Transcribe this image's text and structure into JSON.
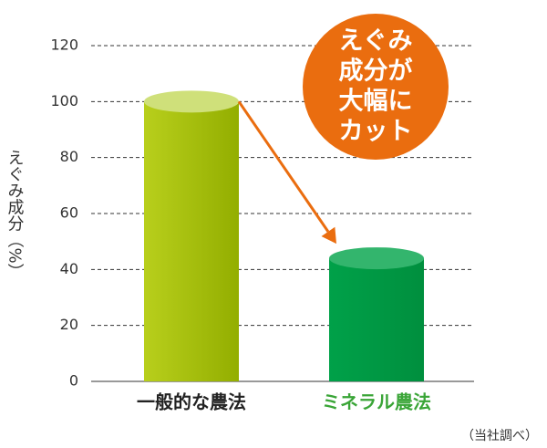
{
  "chart_data": {
    "type": "bar",
    "y_label": "えぐみ成分（%）",
    "categories": [
      "一般的な農法",
      "ミネラル農法"
    ],
    "values": [
      100,
      44
    ],
    "colors": [
      "#a4c010",
      "#009a44"
    ],
    "top_colors": [
      "#cfe07a",
      "#33b56d"
    ],
    "label_colors": [
      "#222222",
      "#3aa537"
    ],
    "ylim": [
      0,
      120
    ],
    "yticks": [
      0,
      20,
      40,
      60,
      80,
      100,
      120
    ],
    "grid": true,
    "annotation": [
      "えぐみ",
      "成分が",
      "大幅に",
      "カット"
    ],
    "annotation_color": "#ea6d0f",
    "source": "（当社調べ）"
  }
}
